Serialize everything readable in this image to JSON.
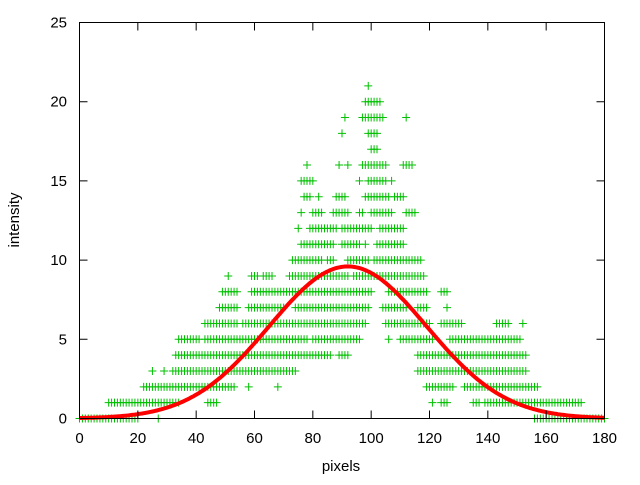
{
  "chart_data": {
    "type": "scatter",
    "title": "",
    "xlabel": "pixels",
    "ylabel": "intensity",
    "xlim": [
      0,
      180
    ],
    "ylim": [
      0,
      25
    ],
    "xticks": [
      "0",
      "20",
      "40",
      "60",
      "80",
      "100",
      "120",
      "140",
      "160",
      "180"
    ],
    "yticks": [
      "0",
      "5",
      "10",
      "15",
      "20",
      "25"
    ],
    "grid": false,
    "legend": "none",
    "marker": "plus",
    "colors": {
      "points": "#00c000",
      "fit": "#ff0000",
      "axes": "#000000"
    },
    "points_by_intensity": [
      {
        "y": 0,
        "x_ranges": [
          [
            0,
            20
          ],
          [
            27,
            27
          ],
          [
            156,
            180
          ]
        ]
      },
      {
        "y": 1,
        "x_ranges": [
          [
            10,
            34
          ],
          [
            44,
            47
          ],
          [
            121,
            121
          ],
          [
            124,
            126
          ],
          [
            135,
            137
          ],
          [
            139,
            172
          ]
        ]
      },
      {
        "y": 2,
        "x_ranges": [
          [
            22,
            53
          ],
          [
            58,
            58
          ],
          [
            68,
            68
          ],
          [
            119,
            128
          ],
          [
            132,
            157
          ]
        ]
      },
      {
        "y": 3,
        "x_ranges": [
          [
            25,
            25
          ],
          [
            29,
            29
          ],
          [
            32,
            74
          ],
          [
            116,
            153
          ]
        ]
      },
      {
        "y": 4,
        "x_ranges": [
          [
            33,
            86
          ],
          [
            89,
            92
          ],
          [
            116,
            153
          ]
        ]
      },
      {
        "y": 5,
        "x_ranges": [
          [
            34,
            41
          ],
          [
            43,
            78
          ],
          [
            80,
            96
          ],
          [
            106,
            106
          ],
          [
            110,
            121
          ],
          [
            127,
            151
          ]
        ]
      },
      {
        "y": 6,
        "x_ranges": [
          [
            43,
            54
          ],
          [
            56,
            98
          ],
          [
            105,
            120
          ],
          [
            124,
            131
          ],
          [
            143,
            147
          ],
          [
            152,
            152
          ]
        ]
      },
      {
        "y": 7,
        "x_ranges": [
          [
            48,
            54
          ],
          [
            58,
            70
          ],
          [
            74,
            99
          ],
          [
            104,
            112
          ],
          [
            116,
            119
          ],
          [
            126,
            126
          ]
        ]
      },
      {
        "y": 8,
        "x_ranges": [
          [
            49,
            54
          ],
          [
            59,
            100
          ],
          [
            106,
            119
          ],
          [
            124,
            126
          ]
        ]
      },
      {
        "y": 9,
        "x_ranges": [
          [
            51,
            51
          ],
          [
            59,
            61
          ],
          [
            63,
            66
          ],
          [
            72,
            92
          ],
          [
            94,
            118
          ]
        ]
      },
      {
        "y": 10,
        "x_ranges": [
          [
            73,
            83
          ],
          [
            85,
            87
          ],
          [
            92,
            99
          ],
          [
            101,
            117
          ]
        ]
      },
      {
        "y": 11,
        "x_ranges": [
          [
            76,
            87
          ],
          [
            90,
            96
          ],
          [
            98,
            98
          ],
          [
            102,
            111
          ]
        ]
      },
      {
        "y": 12,
        "x_ranges": [
          [
            75,
            75
          ],
          [
            79,
            88
          ],
          [
            90,
            100
          ],
          [
            103,
            111
          ]
        ]
      },
      {
        "y": 13,
        "x_ranges": [
          [
            76,
            76
          ],
          [
            80,
            83
          ],
          [
            87,
            92
          ],
          [
            96,
            97
          ],
          [
            100,
            107
          ],
          [
            112,
            115
          ]
        ]
      },
      {
        "y": 14,
        "x_ranges": [
          [
            77,
            79
          ],
          [
            82,
            82
          ],
          [
            88,
            91
          ],
          [
            98,
            106
          ],
          [
            108,
            111
          ]
        ]
      },
      {
        "y": 15,
        "x_ranges": [
          [
            76,
            80
          ],
          [
            96,
            96
          ],
          [
            99,
            105
          ],
          [
            107,
            107
          ]
        ]
      },
      {
        "y": 16,
        "x_ranges": [
          [
            78,
            78
          ],
          [
            89,
            89
          ],
          [
            92,
            92
          ],
          [
            97,
            105
          ],
          [
            111,
            114
          ]
        ]
      },
      {
        "y": 17,
        "x_ranges": [
          [
            100,
            102
          ]
        ]
      },
      {
        "y": 18,
        "x_ranges": [
          [
            90,
            90
          ],
          [
            99,
            102
          ]
        ]
      },
      {
        "y": 19,
        "x_ranges": [
          [
            91,
            91
          ],
          [
            97,
            104
          ],
          [
            112,
            112
          ]
        ]
      },
      {
        "y": 20,
        "x_ranges": [
          [
            98,
            103
          ]
        ]
      },
      {
        "y": 21,
        "x_ranges": [
          [
            99,
            99
          ]
        ]
      }
    ],
    "fit": {
      "type": "gaussian",
      "amplitude": 9.6,
      "mean": 92,
      "sigma": 27
    }
  }
}
